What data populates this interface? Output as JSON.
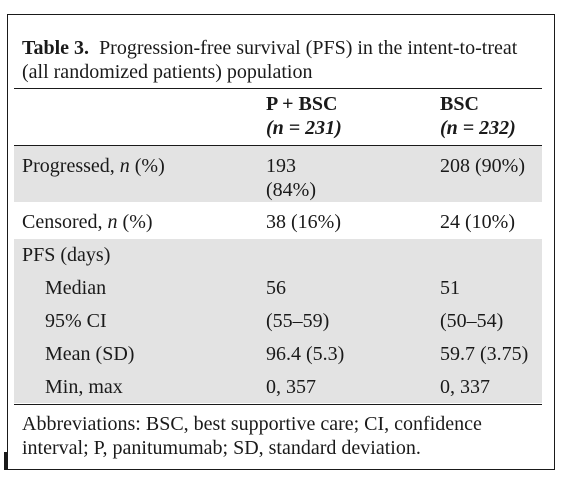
{
  "table": {
    "label": "Table 3.",
    "caption": "Progression-free survival (PFS) in the intent-to-treat (all randomized patients) population",
    "columns": [
      {
        "name": "P + BSC",
        "n": "(n = 231)"
      },
      {
        "name": "BSC",
        "n": "(n = 232)"
      }
    ],
    "rows": [
      {
        "label": "Progressed, ",
        "label_italic": "n",
        "label_tail": " (%)",
        "c1": "193",
        "c1b": "(84%)",
        "c2": "208 (90%)"
      },
      {
        "label": "Censored, ",
        "label_italic": "n",
        "label_tail": " (%)",
        "c1": "38 (16%)",
        "c2": "24 (10%)"
      },
      {
        "label": "PFS (days)"
      },
      {
        "label": "Median",
        "c1": "56",
        "c2": "51"
      },
      {
        "label": "95% CI",
        "c1": "(55–59)",
        "c2": "(50–54)"
      },
      {
        "label": "Mean (SD)",
        "c1": "96.4 (5.3)",
        "c2": "59.7 (3.75)"
      },
      {
        "label": "Min, max",
        "c1": "0, 357",
        "c2": "0, 337"
      }
    ],
    "footnote": "Abbreviations: BSC, best supportive care; CI, confidence interval; P, panitumumab; SD, standard deviation."
  }
}
